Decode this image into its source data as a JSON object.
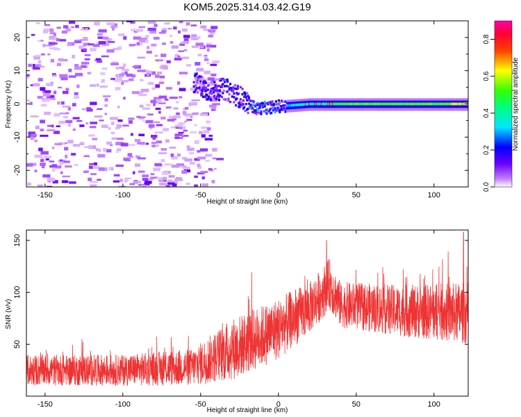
{
  "title": "KOM5.2025.314.03.42.G19",
  "chart_data": [
    {
      "type": "heatmap",
      "xlabel": "Height of straight line (km)",
      "ylabel": "Frequency (Hz)",
      "xlim": [
        -162,
        122
      ],
      "ylim": [
        -25,
        25
      ],
      "xticks": [
        -150,
        -100,
        -50,
        0,
        50,
        100
      ],
      "yticks": [
        -20,
        -10,
        0,
        10,
        20
      ],
      "colorbar": {
        "label": "Normalized spectral amplitude",
        "range": [
          0.0,
          0.9
        ],
        "ticks": [
          "0.0",
          "0.2",
          "0.4",
          "0.6",
          "0.8"
        ],
        "colormap": "rainbow (magenta-blue-cyan-green-yellow-red-pink)"
      },
      "features": {
        "noise_region_x_km": [
          -162,
          -40
        ],
        "noise_amplitude": [
          0.02,
          0.15
        ],
        "signal_track": [
          {
            "x": -55,
            "f": 6.5
          },
          {
            "x": -45,
            "f": 4.0
          },
          {
            "x": -35,
            "f": 4.5
          },
          {
            "x": -25,
            "f": 2.0
          },
          {
            "x": -15,
            "f": -1.5
          },
          {
            "x": -5,
            "f": -1.0
          },
          {
            "x": 5,
            "f": -0.5
          },
          {
            "x": 20,
            "f": 0.0
          },
          {
            "x": 40,
            "f": 0.0
          },
          {
            "x": 80,
            "f": 0.0
          },
          {
            "x": 122,
            "f": 0.0
          }
        ]
      }
    },
    {
      "type": "line",
      "color": "#ee3333",
      "xlabel": "Height of straight line (km)",
      "ylabel": "SNR (v/v)",
      "xlim": [
        -162,
        122
      ],
      "ylim": [
        0,
        160
      ],
      "xticks": [
        -150,
        -100,
        -50,
        0,
        50,
        100
      ],
      "yticks": [
        50,
        100,
        150
      ],
      "envelope": [
        {
          "x": -162,
          "mean": 25,
          "spread": 15
        },
        {
          "x": -100,
          "mean": 25,
          "spread": 15
        },
        {
          "x": -55,
          "mean": 28,
          "spread": 18
        },
        {
          "x": -30,
          "mean": 45,
          "spread": 30
        },
        {
          "x": 0,
          "mean": 65,
          "spread": 30
        },
        {
          "x": 20,
          "mean": 85,
          "spread": 25
        },
        {
          "x": 33,
          "mean": 108,
          "spread": 25
        },
        {
          "x": 40,
          "mean": 88,
          "spread": 22
        },
        {
          "x": 80,
          "mean": 82,
          "spread": 25
        },
        {
          "x": 122,
          "mean": 80,
          "spread": 30
        }
      ],
      "peaks": [
        {
          "x": 31,
          "y": 150
        },
        {
          "x": 119,
          "y": 158
        }
      ]
    }
  ]
}
